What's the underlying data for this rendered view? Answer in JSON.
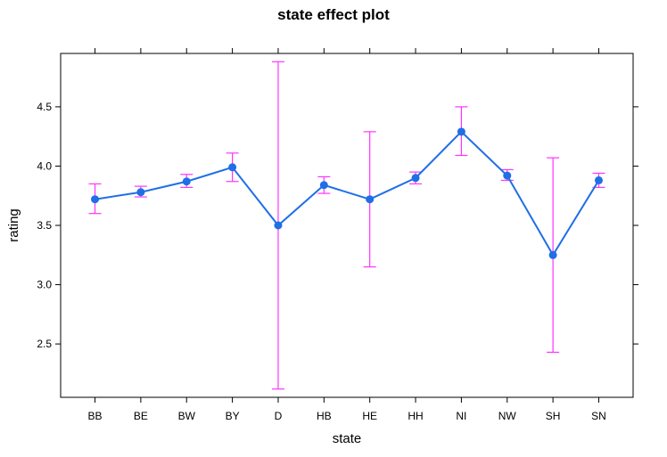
{
  "chart_data": {
    "type": "line",
    "title": "state effect plot",
    "xlabel": "state",
    "ylabel": "rating",
    "categories": [
      "BB",
      "BE",
      "BW",
      "BY",
      "D",
      "HB",
      "HE",
      "HH",
      "NI",
      "NW",
      "SH",
      "SN"
    ],
    "values": [
      3.72,
      3.78,
      3.87,
      3.99,
      3.5,
      3.84,
      3.72,
      3.9,
      4.29,
      3.92,
      3.25,
      3.88
    ],
    "lower": [
      3.6,
      3.74,
      3.82,
      3.87,
      2.12,
      3.77,
      3.15,
      3.85,
      4.09,
      3.88,
      2.43,
      3.82
    ],
    "upper": [
      3.85,
      3.83,
      3.93,
      4.11,
      4.88,
      3.91,
      4.29,
      3.95,
      4.5,
      3.97,
      4.07,
      3.94
    ],
    "yticks": [
      2.5,
      3.0,
      3.5,
      4.0,
      4.5
    ],
    "ytick_labels": [
      "2.5",
      "3.0",
      "3.5",
      "4.0",
      "4.5"
    ],
    "ylim": [
      2.05,
      4.95
    ],
    "grid": false,
    "colors": {
      "line": "#1f6fe6",
      "point": "#1f6fe6",
      "error_bar": "#ff33ff",
      "frame": "#000000"
    }
  }
}
